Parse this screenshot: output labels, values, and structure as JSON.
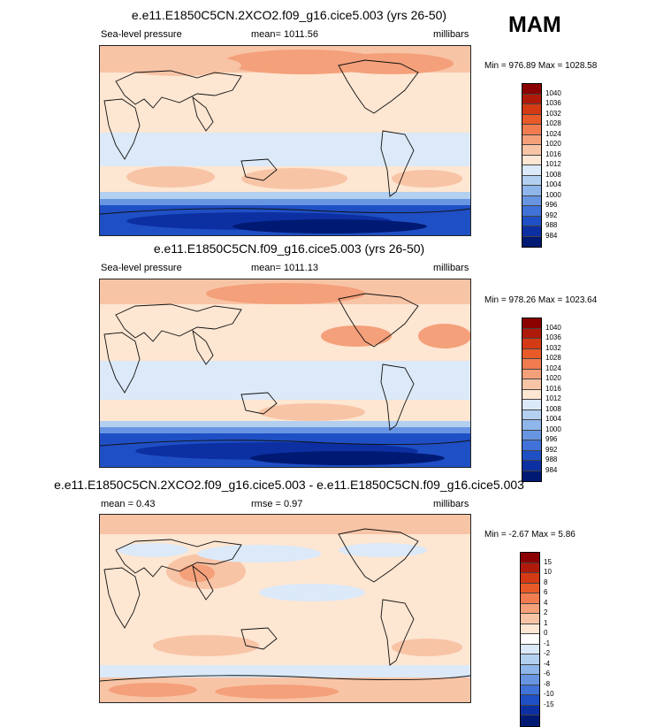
{
  "season": "MAM",
  "panels": [
    {
      "title": "e.e11.E1850C5CN.2XCO2.f09_g16.cice5.003 (yrs 26-50)",
      "left_label": "Sea-level pressure",
      "center_label": "mean= 1011.56",
      "right_label": "millibars",
      "min_max": "Min = 976.89 Max = 1028.58",
      "colorbar": {
        "colors": [
          "#8b0000",
          "#b01a0a",
          "#d43a14",
          "#e85a28",
          "#f07c50",
          "#f4a07a",
          "#f8c4a6",
          "#fde6d2",
          "#dbe9f8",
          "#b4d0f0",
          "#8eb6ea",
          "#6895e2",
          "#4172d8",
          "#1f4fc4",
          "#0c2fa2",
          "#001a73"
        ],
        "labels": [
          "1040",
          "1036",
          "1032",
          "1028",
          "1024",
          "1020",
          "1016",
          "1012",
          "1008",
          "1004",
          "1000",
          "996",
          "992",
          "988",
          "984"
        ]
      }
    },
    {
      "title": "e.e11.E1850C5CN.f09_g16.cice5.003 (yrs 26-50)",
      "left_label": "Sea-level pressure",
      "center_label": "mean= 1011.13",
      "right_label": "millibars",
      "min_max": "Min = 978.26 Max = 1023.64",
      "colorbar": {
        "colors": [
          "#8b0000",
          "#b01a0a",
          "#d43a14",
          "#e85a28",
          "#f07c50",
          "#f4a07a",
          "#f8c4a6",
          "#fde6d2",
          "#dbe9f8",
          "#b4d0f0",
          "#8eb6ea",
          "#6895e2",
          "#4172d8",
          "#1f4fc4",
          "#0c2fa2",
          "#001a73"
        ],
        "labels": [
          "1040",
          "1036",
          "1032",
          "1028",
          "1024",
          "1020",
          "1016",
          "1012",
          "1008",
          "1004",
          "1000",
          "996",
          "992",
          "988",
          "984"
        ]
      }
    },
    {
      "title": "e.e11.E1850C5CN.2XCO2.f09_g16.cice5.003 - e.e11.E1850C5CN.f09_g16.cice5.003",
      "left_label": "mean =  0.43",
      "center_label": "rmse =  0.97",
      "right_label": "millibars",
      "min_max": "Min =  -2.67 Max =  5.86",
      "colorbar": {
        "colors": [
          "#8b0000",
          "#b01a0a",
          "#d43a14",
          "#e85a28",
          "#f07c50",
          "#f4a07a",
          "#f8c4a6",
          "#fde6d2",
          "#ffffff",
          "#dbe9f8",
          "#b4d0f0",
          "#8eb6ea",
          "#6895e2",
          "#4172d8",
          "#1f4fc4",
          "#0c2fa2",
          "#001a73"
        ],
        "labels": [
          "15",
          "10",
          "8",
          "6",
          "4",
          "2",
          "1",
          "0",
          "-1",
          "-2",
          "-4",
          "-6",
          "-8",
          "-10",
          "-15"
        ]
      }
    }
  ]
}
